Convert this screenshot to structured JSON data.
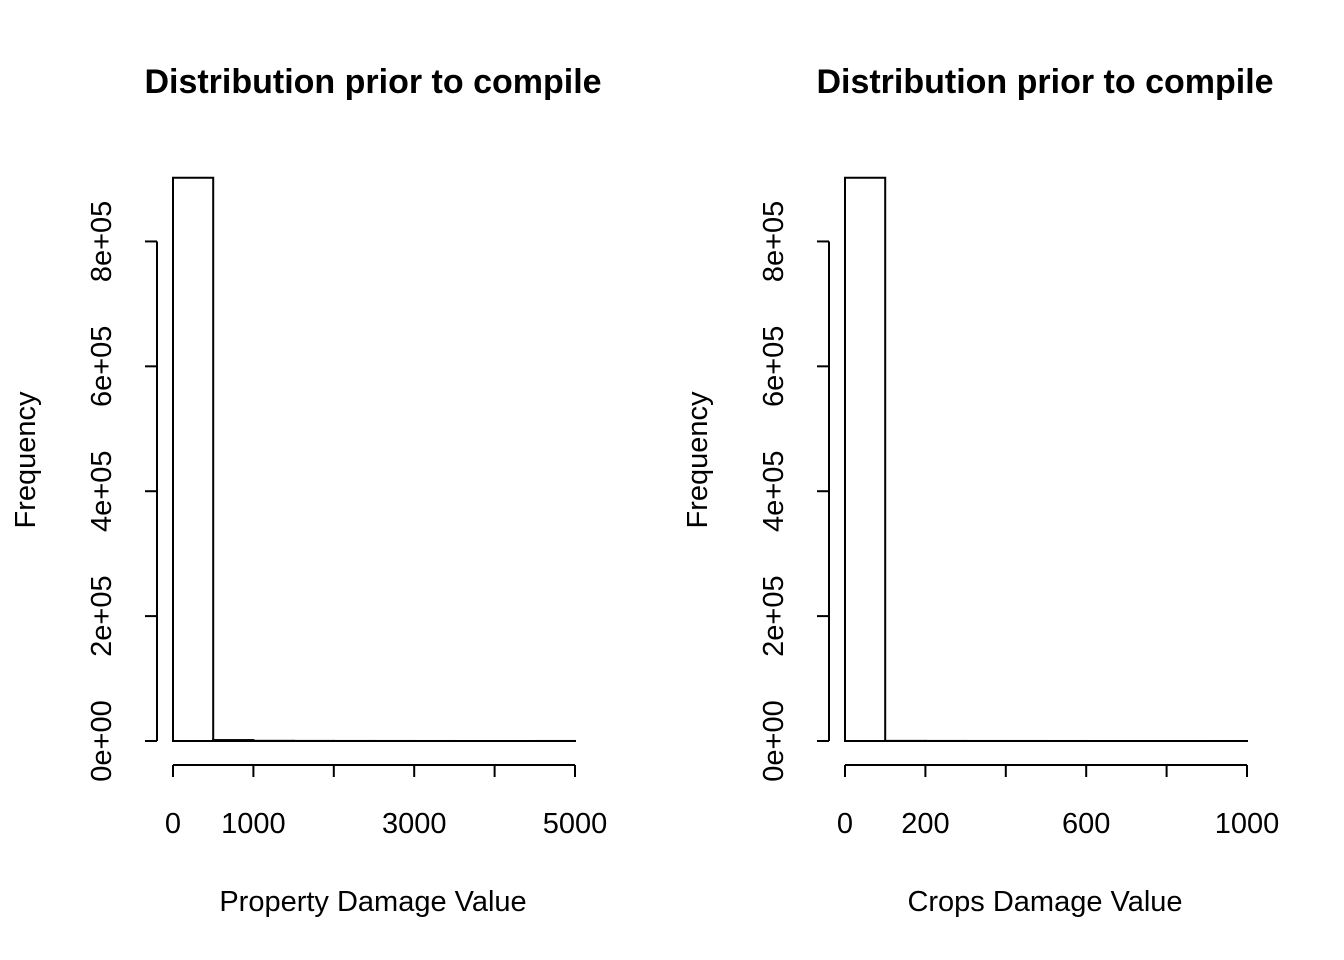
{
  "chart_data": [
    {
      "type": "bar",
      "title": "Distribution prior to compile",
      "xlabel": "Property Damage Value",
      "ylabel": "Frequency",
      "xlim": [
        0,
        5000
      ],
      "ylim": [
        0,
        900000
      ],
      "x_ticks": [
        0,
        1000,
        2000,
        3000,
        4000,
        5000
      ],
      "x_tick_labels": [
        "0",
        "1000",
        "",
        "3000",
        "",
        "5000"
      ],
      "y_ticks": [
        0,
        200000,
        400000,
        600000,
        800000
      ],
      "y_tick_labels": [
        "0e+00",
        "2e+05",
        "4e+05",
        "6e+05",
        "8e+05"
      ],
      "bins": [
        {
          "start": 0,
          "end": 500,
          "count": 902000
        },
        {
          "start": 500,
          "end": 1000,
          "count": 1500
        },
        {
          "start": 1000,
          "end": 1500,
          "count": 300
        },
        {
          "start": 1500,
          "end": 2000,
          "count": 150
        },
        {
          "start": 2000,
          "end": 2500,
          "count": 80
        },
        {
          "start": 2500,
          "end": 3000,
          "count": 50
        },
        {
          "start": 3000,
          "end": 3500,
          "count": 30
        },
        {
          "start": 3500,
          "end": 4000,
          "count": 20
        },
        {
          "start": 4000,
          "end": 4500,
          "count": 15
        },
        {
          "start": 4500,
          "end": 5000,
          "count": 40
        }
      ],
      "grid": false
    },
    {
      "type": "bar",
      "title": "Distribution prior to compile",
      "xlabel": "Crops Damage Value",
      "ylabel": "Frequency",
      "xlim": [
        0,
        1000
      ],
      "ylim": [
        0,
        900000
      ],
      "x_ticks": [
        0,
        200,
        400,
        600,
        800,
        1000
      ],
      "x_tick_labels": [
        "0",
        "200",
        "",
        "600",
        "",
        "1000"
      ],
      "y_ticks": [
        0,
        200000,
        400000,
        600000,
        800000
      ],
      "y_tick_labels": [
        "0e+00",
        "2e+05",
        "4e+05",
        "6e+05",
        "8e+05"
      ],
      "bins": [
        {
          "start": 0,
          "end": 100,
          "count": 902000
        },
        {
          "start": 100,
          "end": 200,
          "count": 200
        },
        {
          "start": 200,
          "end": 300,
          "count": 120
        },
        {
          "start": 300,
          "end": 400,
          "count": 60
        },
        {
          "start": 400,
          "end": 500,
          "count": 50
        },
        {
          "start": 500,
          "end": 600,
          "count": 30
        },
        {
          "start": 600,
          "end": 700,
          "count": 20
        },
        {
          "start": 700,
          "end": 800,
          "count": 10
        },
        {
          "start": 800,
          "end": 900,
          "count": 8
        },
        {
          "start": 900,
          "end": 1000,
          "count": 25
        }
      ],
      "grid": false
    }
  ]
}
